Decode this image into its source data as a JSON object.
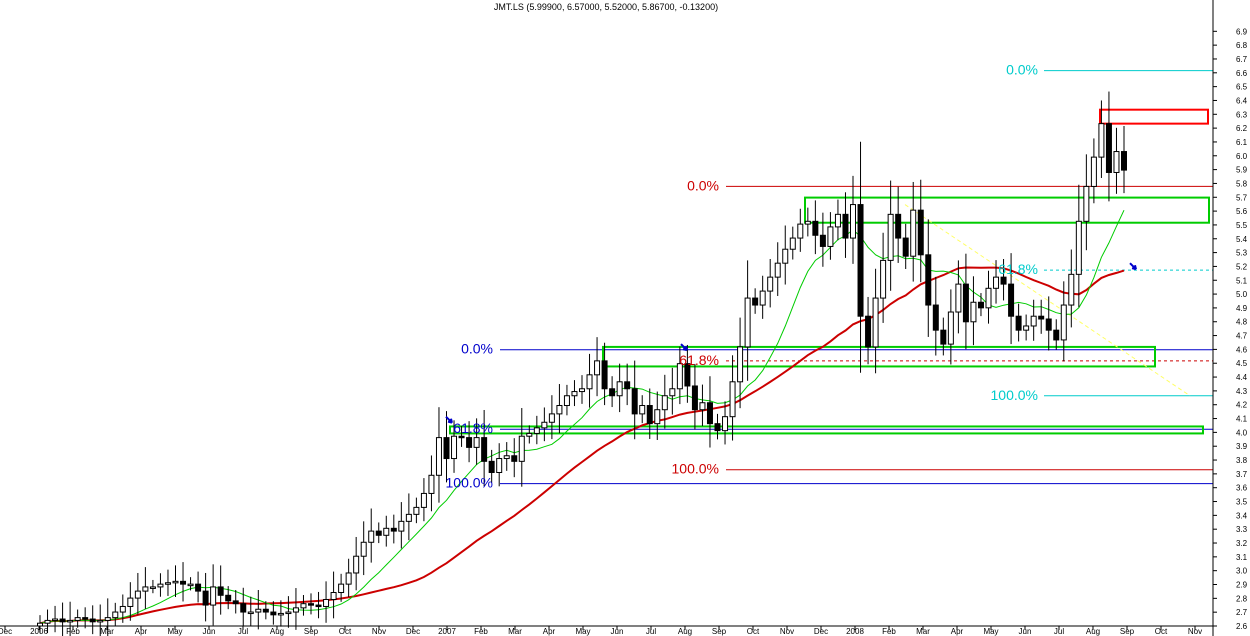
{
  "chart_data": {
    "type": "candlestick",
    "title": "JMT.LS (5.99900, 6.57000, 5.52000, 5.86700, -0.13200)",
    "ylim": [
      2.6,
      7.0
    ],
    "yticks": [
      "2.6",
      "2.7",
      "2.8",
      "2.9",
      "3.0",
      "3.1",
      "3.2",
      "3.3",
      "3.4",
      "3.5",
      "3.6",
      "3.7",
      "3.8",
      "3.9",
      "4.0",
      "4.1",
      "4.2",
      "4.3",
      "4.4",
      "4.5",
      "4.6",
      "4.7",
      "4.8",
      "4.9",
      "5.0",
      "5.1",
      "5.2",
      "5.3",
      "5.4",
      "5.5",
      "5.6",
      "5.7",
      "5.8",
      "5.9",
      "6.0",
      "6.1",
      "6.2",
      "6.3",
      "6.4",
      "6.5",
      "6.6",
      "6.7",
      "6.8",
      "6.9"
    ],
    "xtick_labels": [
      "Dec",
      "2006",
      "Feb",
      "Mar",
      "Apr",
      "May",
      "Jun",
      "Jul",
      "Aug",
      "Sep",
      "Oct",
      "Nov",
      "Dec",
      "2007",
      "Feb",
      "Mar",
      "Apr",
      "May",
      "Jun",
      "Jul",
      "Aug",
      "Sep",
      "Oct",
      "Nov",
      "Dec",
      "2008",
      "Feb",
      "Mar",
      "Apr",
      "May",
      "Jun",
      "Jul",
      "Aug",
      "Sep",
      "Oct",
      "Nov"
    ],
    "weekly_close": [
      2.62,
      2.64,
      2.65,
      2.63,
      2.64,
      2.66,
      2.65,
      2.63,
      2.64,
      2.66,
      2.7,
      2.74,
      2.8,
      2.85,
      2.88,
      2.88,
      2.9,
      2.91,
      2.92,
      2.9,
      2.9,
      2.85,
      2.75,
      2.88,
      2.82,
      2.78,
      2.76,
      2.7,
      2.7,
      2.72,
      2.7,
      2.68,
      2.69,
      2.7,
      2.73,
      2.76,
      2.75,
      2.74,
      2.79,
      2.84,
      2.9,
      2.98,
      3.1,
      3.2,
      3.28,
      3.25,
      3.3,
      3.28,
      3.35,
      3.4,
      3.45,
      3.55,
      3.68,
      3.95,
      3.8,
      3.96,
      3.95,
      3.88,
      3.95,
      3.78,
      3.7,
      3.8,
      3.82,
      3.78,
      3.96,
      3.98,
      4.02,
      4.06,
      4.12,
      4.18,
      4.25,
      4.28,
      4.3,
      4.4,
      4.5,
      4.3,
      4.25,
      4.35,
      4.3,
      4.12,
      4.18,
      4.05,
      4.15,
      4.25,
      4.3,
      4.48,
      4.32,
      4.15,
      4.2,
      4.05,
      4.0,
      4.1,
      4.35,
      4.6,
      4.95,
      4.9,
      5.0,
      5.1,
      5.2,
      5.3,
      5.38,
      5.48,
      5.5,
      5.4,
      5.32,
      5.46,
      5.55,
      5.38,
      5.62,
      4.82,
      4.6,
      4.95,
      5.22,
      5.55,
      5.38,
      5.25,
      5.58,
      5.26,
      4.9,
      4.72,
      4.62,
      4.85,
      5.05,
      4.78,
      4.92,
      4.88,
      5.02,
      5.1,
      5.05,
      4.82,
      4.72,
      4.75,
      4.82,
      4.8,
      4.72,
      4.65,
      4.9,
      5.12,
      5.5,
      5.75,
      5.96,
      6.2,
      5.85,
      6.0,
      5.867
    ],
    "ma_short": [],
    "ma_long": [],
    "ma_short_color": "#00cc00",
    "ma_long_color": "#cc0000",
    "fib_red": {
      "levels": [
        5.75,
        4.5,
        3.72
      ],
      "labels": [
        "0.0%",
        "61.8%",
        "100.0%"
      ],
      "color": "#cc0000"
    },
    "fib_blue": {
      "levels": [
        4.58,
        4.01,
        3.62
      ],
      "labels": [
        "0.0%",
        "61.8%",
        "100.0%"
      ],
      "color": "#0000cc"
    },
    "fib_cyan": {
      "levels": [
        6.58,
        5.15,
        4.25
      ],
      "labels": [
        "0.0%",
        "61.8%",
        "100.0%"
      ],
      "color": "#00cccc"
    },
    "zones": [
      {
        "color": "#00cc00",
        "y_top": 4.6,
        "y_bottom": 4.46
      },
      {
        "color": "#00cc00",
        "y_top": 5.67,
        "y_bottom": 5.49
      },
      {
        "color": "#00cc00",
        "y_top": 4.03,
        "y_bottom": 3.98
      },
      {
        "color": "#ff0000",
        "y_top": 6.3,
        "y_bottom": 6.2
      }
    ],
    "trendline_color": "#ffff66",
    "arrow_color": "#0000cc"
  }
}
